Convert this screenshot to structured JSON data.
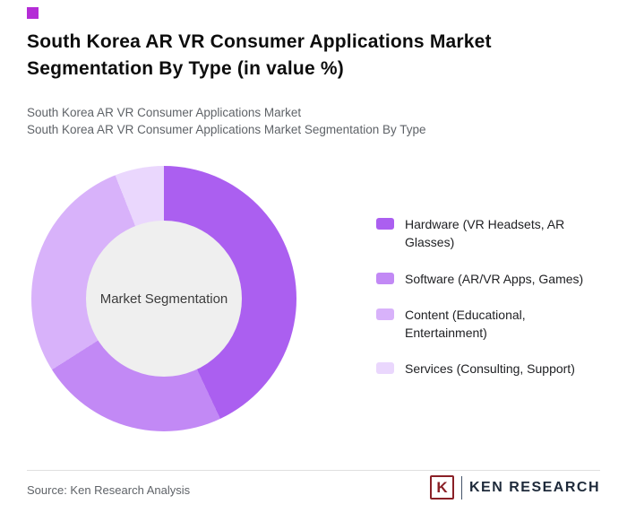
{
  "accent": {
    "color": "#b42cd6"
  },
  "header": {
    "title": "South Korea AR VR Consumer Applications Market Segmentation By Type (in value %)",
    "subtitle_line1": "South Korea AR VR Consumer Applications Market",
    "subtitle_line2": "South Korea AR VR Consumer Applications Market Segmentation By Type"
  },
  "chart_data": {
    "type": "pie",
    "variant": "donut",
    "title": "South Korea AR VR Consumer Applications Market Segmentation By Type (in value %)",
    "center_label": "Market Segmentation",
    "categories": [
      "Hardware (VR Headsets, AR Glasses)",
      "Software (AR/VR Apps, Games)",
      "Content (Educational, Entertainment)",
      "Services (Consulting, Support)"
    ],
    "values": [
      43,
      23,
      28,
      6
    ],
    "colors": [
      "#ab5ff0",
      "#c289f5",
      "#d8b2fa",
      "#ead7fd"
    ],
    "legend_position": "right",
    "start_angle_deg": 0,
    "direction": "clockwise"
  },
  "footer": {
    "source": "Source: Ken Research Analysis",
    "logo": {
      "letter": "K",
      "brand": "KEN RESEARCH"
    }
  }
}
